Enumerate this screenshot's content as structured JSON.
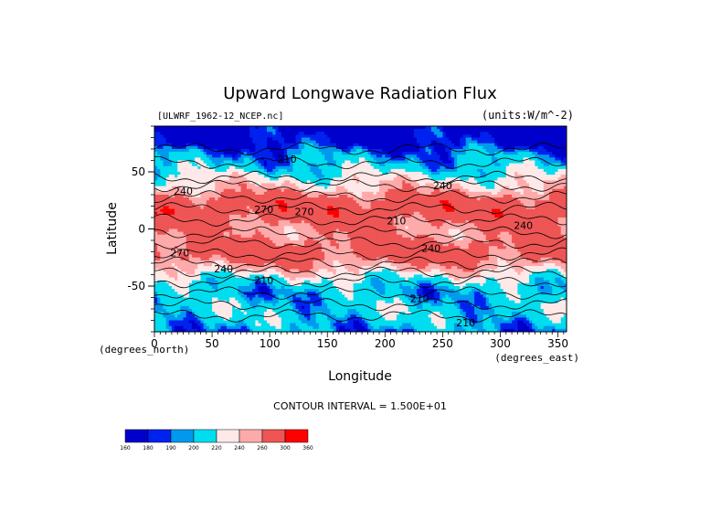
{
  "chart_data": {
    "type": "heatmap",
    "title": "Upward Longwave Radiation Flux",
    "source_label": "[ULWRF_1962-12_NCEP.nc]",
    "units_label": "(units:W/m^-2)",
    "xlabel": "Longitude",
    "ylabel": "Latitude",
    "x_unit_label": "(degrees_east)",
    "y_unit_label": "(degrees_north)",
    "xlim": [
      0,
      357.5
    ],
    "ylim": [
      -90,
      90
    ],
    "x_ticks": [
      0,
      50,
      100,
      150,
      200,
      250,
      300,
      350
    ],
    "y_ticks": [
      -50,
      0,
      50
    ],
    "contour_interval_text": "CONTOUR INTERVAL = 1.500E+01",
    "contour_labels": [
      "210",
      "240",
      "270",
      "240",
      "210",
      "240",
      "270",
      "240",
      "210",
      "210",
      "210",
      "270",
      "240"
    ],
    "colorbar": {
      "levels": [
        "160",
        "180",
        "190",
        "200",
        "220",
        "240",
        "260",
        "300",
        "360"
      ],
      "colors": [
        "#0000cc",
        "#0022ee",
        "#0099ee",
        "#00ddee",
        "#ffe8e8",
        "#ffaaaa",
        "#ee5555",
        "#ff0000"
      ]
    },
    "latitude_profile": [
      {
        "lat": 90,
        "value": 165
      },
      {
        "lat": 75,
        "value": 175
      },
      {
        "lat": 65,
        "value": 195
      },
      {
        "lat": 55,
        "value": 205
      },
      {
        "lat": 45,
        "value": 225
      },
      {
        "lat": 35,
        "value": 245
      },
      {
        "lat": 25,
        "value": 275
      },
      {
        "lat": 15,
        "value": 285
      },
      {
        "lat": 5,
        "value": 265
      },
      {
        "lat": -5,
        "value": 255
      },
      {
        "lat": -15,
        "value": 275
      },
      {
        "lat": -25,
        "value": 270
      },
      {
        "lat": -35,
        "value": 245
      },
      {
        "lat": -45,
        "value": 215
      },
      {
        "lat": -55,
        "value": 200
      },
      {
        "lat": -65,
        "value": 205
      },
      {
        "lat": -75,
        "value": 210
      },
      {
        "lat": -90,
        "value": 195
      }
    ]
  }
}
